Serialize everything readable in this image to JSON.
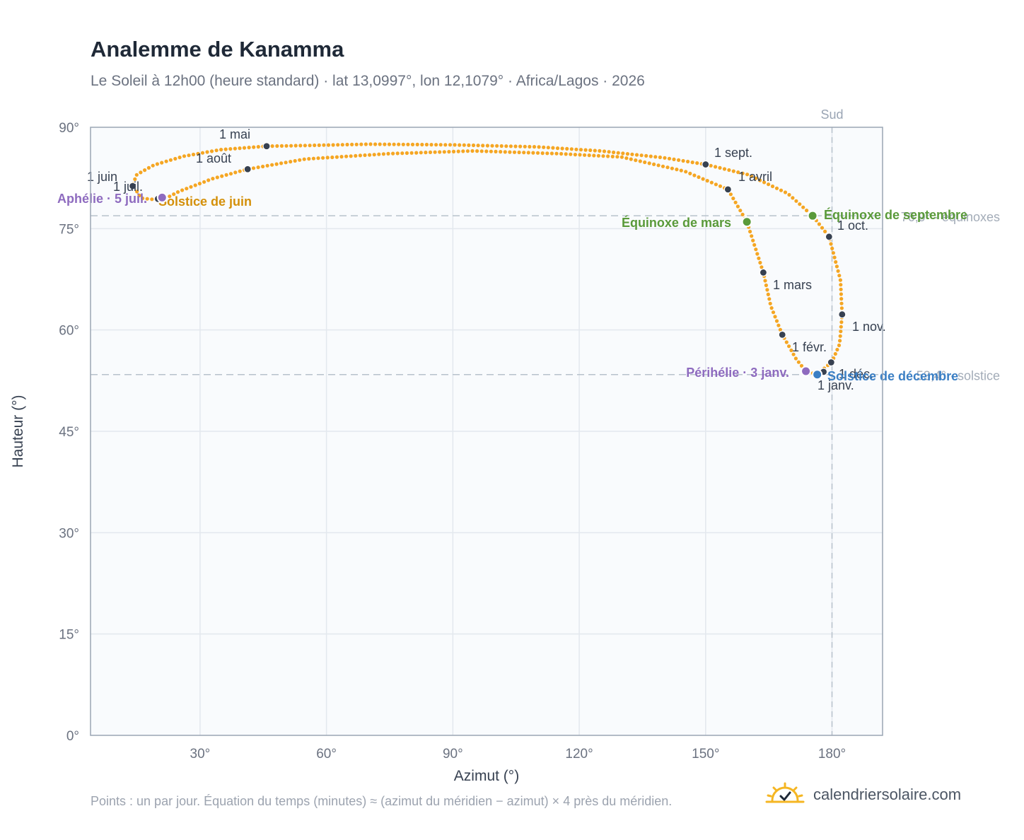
{
  "header": {
    "title": "Analemme de Kanamma",
    "subtitle": "Le Soleil à 12h00 (heure standard) · lat 13,0997°, lon 12,1079° · Africa/Lagos · 2026"
  },
  "footer": {
    "note": "Points : un par jour. Équation du temps (minutes) ≈ (azimut du méridien − azimut) × 4 près du méridien.",
    "brand": "calendriersolaire.com",
    "brand_icon": "sun-check-icon"
  },
  "colors": {
    "curve": "#f5a623",
    "month_marker": "#374151",
    "equinox": "#5a9a3a",
    "june_solstice": "#d4900a",
    "december_solstice": "#3b7fc4",
    "perihelion": "#8e6bbf",
    "reference_line": "#b8c2cc",
    "plot_background": "#f9fbfd",
    "plot_border": "#9aa5b4"
  },
  "chart_data": {
    "type": "scatter",
    "xlabel": "Azimut (°)",
    "ylabel": "Hauteur (°)",
    "xlim": [
      4,
      192
    ],
    "ylim": [
      0,
      90
    ],
    "x_ticks": [
      {
        "value": 30,
        "label": "30°"
      },
      {
        "value": 60,
        "label": "60°"
      },
      {
        "value": 90,
        "label": "90°"
      },
      {
        "value": 120,
        "label": "120°"
      },
      {
        "value": 150,
        "label": "150°"
      },
      {
        "value": 180,
        "label": "180°"
      }
    ],
    "y_ticks": [
      {
        "value": 0,
        "label": "0°"
      },
      {
        "value": 15,
        "label": "15°"
      },
      {
        "value": 30,
        "label": "30°"
      },
      {
        "value": 45,
        "label": "45°"
      },
      {
        "value": 60,
        "label": "60°"
      },
      {
        "value": 75,
        "label": "75°"
      },
      {
        "value": 90,
        "label": "90°"
      }
    ],
    "grid": true,
    "south_line": {
      "azimuth": 180,
      "label": "Sud"
    },
    "reference_lines": [
      {
        "altitude": 76.9,
        "label": "76,9° · équinoxes"
      },
      {
        "altitude": 53.4,
        "label": "53,4° · solstice"
      }
    ],
    "path_anchors": [
      {
        "az": 176.5,
        "alt": 53.4
      },
      {
        "az": 180.0,
        "alt": 55.3
      },
      {
        "az": 181.8,
        "alt": 57.9
      },
      {
        "az": 182.4,
        "alt": 62.3
      },
      {
        "az": 182.0,
        "alt": 67.4
      },
      {
        "az": 179.3,
        "alt": 73.8
      },
      {
        "az": 175.4,
        "alt": 76.9
      },
      {
        "az": 169.5,
        "alt": 80.2
      },
      {
        "az": 160.0,
        "alt": 83.0
      },
      {
        "az": 150.0,
        "alt": 84.5
      },
      {
        "az": 140.0,
        "alt": 85.5
      },
      {
        "az": 125.0,
        "alt": 86.5
      },
      {
        "az": 110.0,
        "alt": 87.1
      },
      {
        "az": 90.0,
        "alt": 87.4
      },
      {
        "az": 70.0,
        "alt": 87.5
      },
      {
        "az": 55.0,
        "alt": 87.3
      },
      {
        "az": 45.8,
        "alt": 87.2
      },
      {
        "az": 35.0,
        "alt": 86.7
      },
      {
        "az": 26.0,
        "alt": 85.7
      },
      {
        "az": 19.0,
        "alt": 84.4
      },
      {
        "az": 15.0,
        "alt": 83.0
      },
      {
        "az": 14.0,
        "alt": 81.5
      },
      {
        "az": 16.0,
        "alt": 79.5
      },
      {
        "az": 21.0,
        "alt": 79.2
      },
      {
        "az": 25.0,
        "alt": 80.5
      },
      {
        "az": 33.0,
        "alt": 82.4
      },
      {
        "az": 41.3,
        "alt": 83.8
      },
      {
        "az": 55.0,
        "alt": 85.3
      },
      {
        "az": 75.0,
        "alt": 86.1
      },
      {
        "az": 95.0,
        "alt": 86.5
      },
      {
        "az": 115.0,
        "alt": 86.1
      },
      {
        "az": 130.0,
        "alt": 85.6
      },
      {
        "az": 145.0,
        "alt": 83.5
      },
      {
        "az": 155.3,
        "alt": 80.8
      },
      {
        "az": 159.8,
        "alt": 76.0
      },
      {
        "az": 163.7,
        "alt": 68.5
      },
      {
        "az": 165.5,
        "alt": 63.5
      },
      {
        "az": 168.2,
        "alt": 59.3
      },
      {
        "az": 171.5,
        "alt": 55.7
      },
      {
        "az": 173.8,
        "alt": 53.9
      },
      {
        "az": 176.5,
        "alt": 53.4
      }
    ],
    "month_markers": [
      {
        "label": "1 janv.",
        "az": 179.8,
        "alt": 55.2,
        "lx": 1156,
        "ly": 551
      },
      {
        "label": "1 févr.",
        "az": 168.2,
        "alt": 59.3,
        "lx": 1120,
        "ly": 497
      },
      {
        "label": "1 mars",
        "az": 163.7,
        "alt": 68.5,
        "lx": 1093,
        "ly": 409
      },
      {
        "label": "1 avril",
        "az": 155.3,
        "alt": 80.8,
        "lx": 1044,
        "ly": 256
      },
      {
        "label": "1 mai",
        "az": 45.8,
        "alt": 87.2,
        "lx": 310,
        "ly": 196
      },
      {
        "label": "1 juin",
        "az": 14.0,
        "alt": 81.3,
        "lx": 123,
        "ly": 256
      },
      {
        "label": "1 juil.",
        "az": 20.0,
        "alt": 79.4,
        "lx": 160,
        "ly": 270
      },
      {
        "label": "1 août",
        "az": 41.3,
        "alt": 83.8,
        "lx": 277,
        "ly": 230
      },
      {
        "label": "1 sept.",
        "az": 150.0,
        "alt": 84.5,
        "lx": 1010,
        "ly": 222
      },
      {
        "label": "1 oct.",
        "az": 179.3,
        "alt": 73.8,
        "lx": 1184,
        "ly": 325
      },
      {
        "label": "1 nov.",
        "az": 182.4,
        "alt": 62.3,
        "lx": 1205,
        "ly": 468
      },
      {
        "label": "1 déc.",
        "az": 178.0,
        "alt": 53.8,
        "lx": 1186,
        "ly": 535
      }
    ],
    "events": [
      {
        "label": "Équinoxe de mars",
        "az": 159.8,
        "alt": 76.0,
        "color": "#5a9a3a",
        "lx": 1034,
        "ly": 321,
        "anchor": "end"
      },
      {
        "label": "Équinoxe de septembre",
        "az": 175.4,
        "alt": 76.9,
        "color": "#5a9a3a",
        "lx": 1165,
        "ly": 310,
        "anchor": "start"
      },
      {
        "label": "Solstice de juin",
        "az": 21.0,
        "alt": 79.6,
        "color": "#d4900a",
        "lx": 224,
        "ly": 291,
        "anchor": "start"
      },
      {
        "label": "Solstice de décembre",
        "az": 176.5,
        "alt": 53.4,
        "color": "#3b7fc4",
        "lx": 1170,
        "ly": 538,
        "anchor": "start"
      },
      {
        "label": "Aphélie · 5 juil.",
        "az": 21.0,
        "alt": 79.6,
        "color": "#8e6bbf",
        "lx": 208,
        "ly": 287,
        "anchor": "end"
      },
      {
        "label": "Périhélie · 3 janv.",
        "az": 173.8,
        "alt": 53.9,
        "color": "#8e6bbf",
        "lx": 1116,
        "ly": 533,
        "anchor": "end"
      }
    ]
  }
}
